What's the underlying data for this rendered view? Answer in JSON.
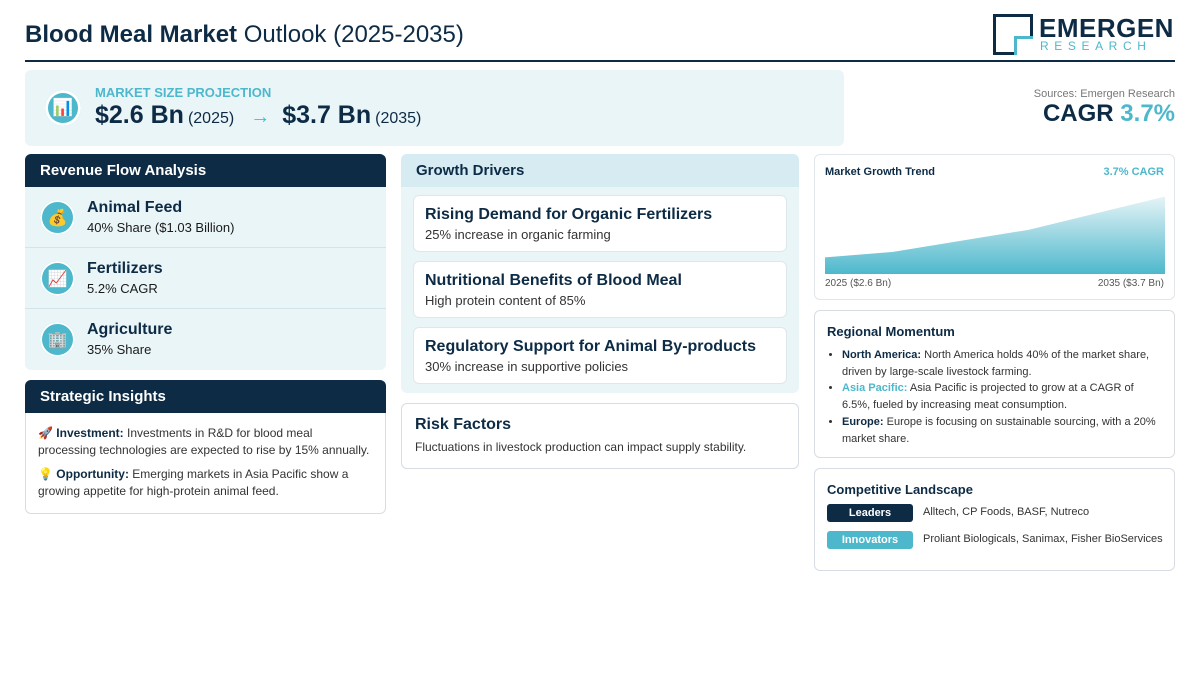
{
  "header": {
    "title_bold": "Blood Meal Market",
    "title_rest": "Outlook (2025-2035)",
    "logo_name": "EMERGEN",
    "logo_sub": "RESEARCH"
  },
  "projection": {
    "label": "MARKET SIZE PROJECTION",
    "start_value": "$2.6 Bn",
    "start_year": "(2025)",
    "arrow": "→",
    "end_value": "$3.7 Bn",
    "end_year": "(2035)",
    "icon": "bar-chart-icon"
  },
  "sources": "Sources: Emergen Research",
  "cagr": {
    "label": "CAGR",
    "value": "3.7%"
  },
  "revenue": {
    "title": "Revenue Flow Analysis",
    "items": [
      {
        "name": "Animal Feed",
        "desc": "40% Share ($1.03 Billion)",
        "icon": "money-bag-icon",
        "glyph": "💰"
      },
      {
        "name": "Fertilizers",
        "desc": "5.2% CAGR",
        "icon": "trend-chart-icon",
        "glyph": "📈"
      },
      {
        "name": "Agriculture",
        "desc": "35% Share",
        "icon": "building-icon",
        "glyph": "🏢"
      }
    ]
  },
  "insights": {
    "title": "Strategic Insights",
    "items": [
      {
        "icon": "rocket-icon",
        "glyph": "🚀",
        "label": "Investment:",
        "text": " Investments in R&D for blood meal processing technologies are expected to rise by 15% annually."
      },
      {
        "icon": "lightbulb-icon",
        "glyph": "💡",
        "label": "Opportunity:",
        "text": " Emerging markets in Asia Pacific show a growing appetite for high-protein animal feed."
      }
    ]
  },
  "drivers": {
    "title": "Growth Drivers",
    "items": [
      {
        "title": "Rising Demand for Organic Fertilizers",
        "desc": "25% increase in organic farming"
      },
      {
        "title": "Nutritional Benefits of Blood Meal",
        "desc": "High protein content of 85%"
      },
      {
        "title": "Regulatory Support for Animal By-products",
        "desc": "30% increase in supportive policies"
      }
    ]
  },
  "risk": {
    "title": "Risk Factors",
    "desc": "Fluctuations in livestock production can impact supply stability."
  },
  "trend": {
    "title": "Market Growth Trend",
    "cagr_label": "3.7% CAGR",
    "start_label": "2025 ($2.6 Bn)",
    "end_label": "2035 ($3.7 Bn)",
    "colors": {
      "area_top": "#e6f4f7",
      "area_bottom": "#4db8cc"
    }
  },
  "chart_data": {
    "type": "area",
    "x": [
      2025,
      2027,
      2031,
      2035
    ],
    "values": [
      2.6,
      2.7,
      3.1,
      3.7
    ],
    "ylim": [
      2.3,
      3.8
    ],
    "title": "Market Growth Trend",
    "xlabel": "",
    "ylabel": ""
  },
  "regional": {
    "title": "Regional Momentum",
    "items": [
      {
        "region": "North America:",
        "text": " North America holds 40% of the market share, driven by large-scale livestock farming.",
        "highlight": false
      },
      {
        "region": "Asia Pacific:",
        "text": " Asia Pacific is projected to grow at a CAGR of 6.5%, fueled by increasing meat consumption.",
        "highlight": true
      },
      {
        "region": "Europe:",
        "text": " Europe is focusing on sustainable sourcing, with a 20% market share.",
        "highlight": false
      }
    ]
  },
  "competitive": {
    "title": "Competitive Landscape",
    "rows": [
      {
        "tag": "Leaders",
        "names": "Alltech, CP Foods, BASF, Nutreco"
      },
      {
        "tag": "Innovators",
        "names": "Proliant Biologicals, Sanimax, Fisher BioServices"
      }
    ]
  },
  "colors": {
    "navy": "#0d2b45",
    "teal": "#4db8cc",
    "light_bg": "#eaf5f8"
  }
}
